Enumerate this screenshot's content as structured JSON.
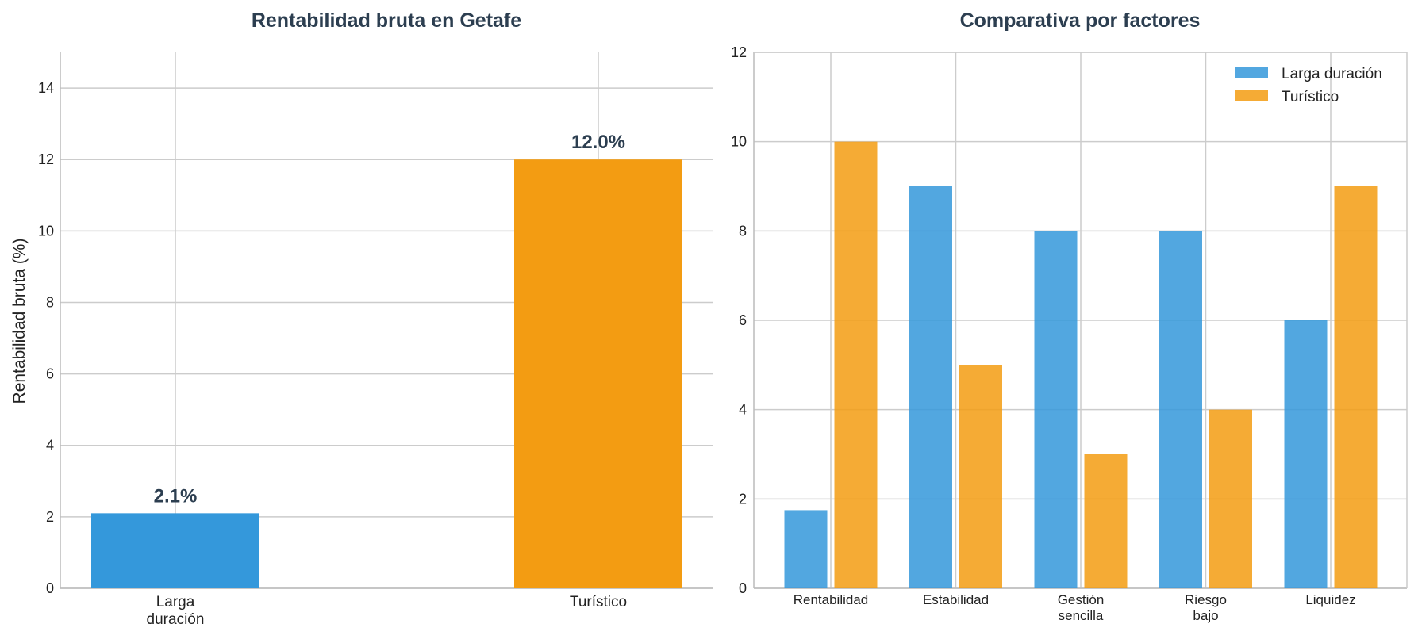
{
  "chart_data": [
    {
      "type": "bar",
      "title": "Rentabilidad bruta en Getafe",
      "ylabel": "Rentabilidad bruta (%)",
      "xlabel": "",
      "categories": [
        "Larga\nduración",
        "Turístico"
      ],
      "values": [
        2.1,
        12.0
      ],
      "data_labels": [
        "2.1%",
        "12.0%"
      ],
      "colors": [
        "#3498db",
        "#f39c12"
      ],
      "ylim": [
        0,
        15
      ],
      "yticks": [
        0,
        2,
        4,
        6,
        8,
        10,
        12,
        14
      ],
      "grid": true
    },
    {
      "type": "bar",
      "title": "Comparativa por factores",
      "xlabel": "",
      "ylabel": "",
      "categories": [
        "Rentabilidad",
        "Estabilidad",
        "Gestión\nsencilla",
        "Riesgo\nbajo",
        "Liquidez"
      ],
      "series": [
        {
          "name": "Larga duración",
          "values": [
            1.75,
            9,
            8,
            8,
            6
          ],
          "color": "#3498db"
        },
        {
          "name": "Turístico",
          "values": [
            10,
            5,
            3,
            4,
            9
          ],
          "color": "#f39c12"
        }
      ],
      "ylim": [
        0,
        12
      ],
      "yticks": [
        0,
        2,
        4,
        6,
        8,
        10,
        12
      ],
      "legend": "top-right",
      "grid": true
    }
  ]
}
